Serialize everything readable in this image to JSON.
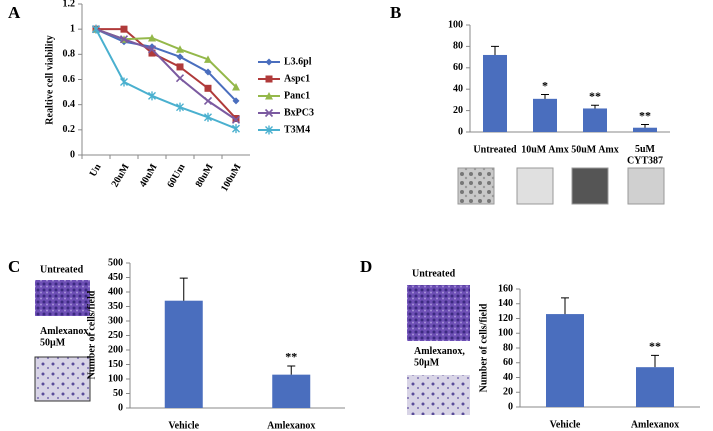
{
  "chart_data": [
    {
      "type": "line",
      "label": "A",
      "y_label": "Realtive cell viability",
      "categories": [
        "Un",
        "20uM",
        "40uM",
        "60Um",
        "80uM",
        "100uM"
      ],
      "series": [
        {
          "name": "L3.6pl",
          "color": "#4a6ebe",
          "marker": "diamond",
          "values": [
            1,
            0.9,
            0.86,
            0.78,
            0.66,
            0.43
          ]
        },
        {
          "name": "Aspc1",
          "color": "#b03a3a",
          "marker": "square",
          "values": [
            1,
            1.0,
            0.81,
            0.7,
            0.53,
            0.29
          ]
        },
        {
          "name": "Panc1",
          "color": "#94b84a",
          "marker": "triangle",
          "values": [
            1,
            0.92,
            0.93,
            0.84,
            0.76,
            0.54
          ]
        },
        {
          "name": "BxPC3",
          "color": "#7b5aa0",
          "marker": "x",
          "values": [
            1,
            0.92,
            0.84,
            0.61,
            0.43,
            0.28
          ]
        },
        {
          "name": "T3M4",
          "color": "#4ab0cf",
          "marker": "star",
          "values": [
            1,
            0.58,
            0.47,
            0.38,
            0.3,
            0.21
          ]
        }
      ],
      "ylim": [
        0,
        1.2
      ],
      "yticks": [
        0,
        0.2,
        0.4,
        0.6,
        0.8,
        1,
        1.2
      ]
    },
    {
      "type": "bar",
      "label": "B",
      "color": "#4a6ebe",
      "categories": [
        "Untreated",
        "10uM Amx",
        "50uM Amx",
        "5uM CYT387"
      ],
      "values": [
        72,
        31,
        22,
        4
      ],
      "errors": [
        8,
        4,
        3,
        3
      ],
      "annotations": [
        null,
        "*",
        "**",
        "**"
      ],
      "ylim": [
        0,
        100
      ],
      "yticks": [
        0,
        20,
        40,
        60,
        80,
        100
      ]
    },
    {
      "type": "bar",
      "label": "C",
      "color": "#4a6ebe",
      "y_label": "Number of cells/field",
      "image_labels": [
        "Untreated",
        "Amlexanox, 50µM"
      ],
      "categories": [
        "Vehicle",
        "Amlexanox"
      ],
      "values": [
        370,
        115
      ],
      "errors": [
        78,
        30
      ],
      "annotations": [
        null,
        "**"
      ],
      "ylim": [
        0,
        500
      ],
      "yticks": [
        0,
        50,
        100,
        150,
        200,
        250,
        300,
        350,
        400,
        450,
        500
      ]
    },
    {
      "type": "bar",
      "label": "D",
      "color": "#4a6ebe",
      "y_label": "Number of cells/field",
      "image_labels": [
        "Untreated",
        "Amlexanox, 50µM"
      ],
      "categories": [
        "Vehicle",
        "Amlexanox"
      ],
      "values": [
        126,
        54
      ],
      "errors": [
        22,
        16
      ],
      "annotations": [
        null,
        "**"
      ],
      "ylim": [
        0,
        160
      ],
      "yticks": [
        0,
        20,
        40,
        60,
        80,
        100,
        120,
        140,
        160
      ]
    }
  ]
}
